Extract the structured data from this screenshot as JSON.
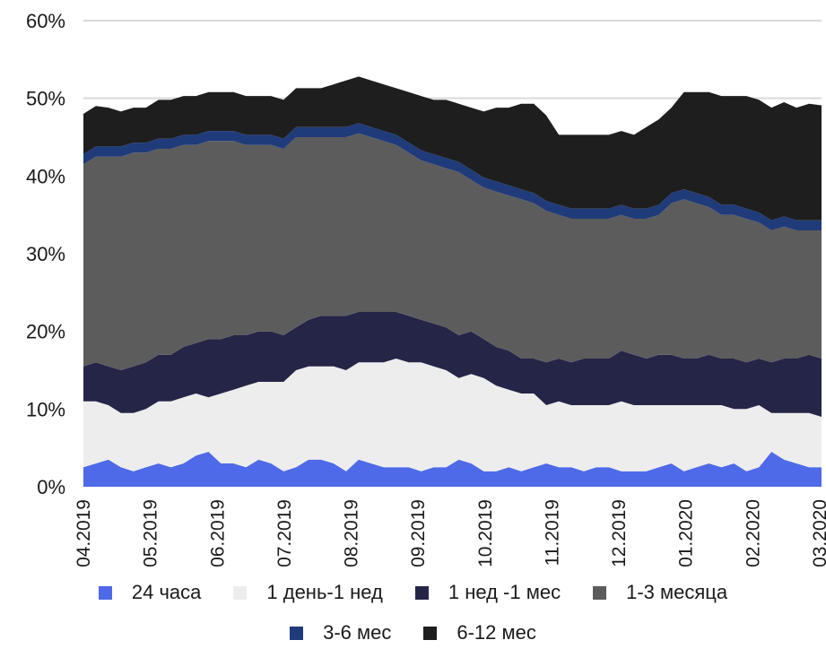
{
  "chart_data": {
    "type": "area",
    "stacked": true,
    "y_ticks": [
      "0%",
      "10%",
      "20%",
      "30%",
      "40%",
      "50%",
      "60%"
    ],
    "ylim": [
      0,
      60
    ],
    "x_ticks": [
      "04.2019",
      "05.2019",
      "06.2019",
      "07.2019",
      "08.2019",
      "09.2019",
      "10.2019",
      "11.2019",
      "12.2019",
      "01.2020",
      "02.2020",
      "03.2020"
    ],
    "grid": "horizontal",
    "legend_position": "bottom",
    "series": [
      {
        "name": "24 часа",
        "color": "#4e6ae8",
        "values": [
          2.5,
          3.0,
          3.5,
          2.5,
          2.0,
          2.5,
          3.0,
          2.5,
          3.0,
          4.0,
          4.5,
          3.0,
          3.0,
          2.5,
          3.5,
          3.0,
          2.0,
          2.5,
          3.5,
          3.5,
          3.0,
          2.0,
          3.5,
          3.0,
          2.5,
          2.5,
          2.5,
          2.0,
          2.5,
          2.5,
          3.5,
          3.0,
          2.0,
          2.0,
          2.5,
          2.0,
          2.5,
          3.0,
          2.5,
          2.5,
          2.0,
          2.5,
          2.5,
          2.0,
          2.0,
          2.0,
          2.5,
          3.0,
          2.0,
          2.5,
          3.0,
          2.5,
          3.0,
          2.0,
          2.5,
          4.5,
          3.5,
          3.0,
          2.5,
          2.5
        ]
      },
      {
        "name": "1 день-1 нед",
        "color": "#ededed",
        "values": [
          8.5,
          8.0,
          7.0,
          7.0,
          7.5,
          7.5,
          8.0,
          8.5,
          8.5,
          8.0,
          7.0,
          9.0,
          9.5,
          10.5,
          10.0,
          10.5,
          11.5,
          12.5,
          12.0,
          12.0,
          12.5,
          13.0,
          12.5,
          13.0,
          13.5,
          14.0,
          13.5,
          14.0,
          13.0,
          12.5,
          10.5,
          11.5,
          12.0,
          11.0,
          10.0,
          10.0,
          9.5,
          7.5,
          8.5,
          8.0,
          8.5,
          8.0,
          8.0,
          9.0,
          8.5,
          8.5,
          8.0,
          7.5,
          8.5,
          8.0,
          7.5,
          8.0,
          7.0,
          8.0,
          8.0,
          5.0,
          6.0,
          6.5,
          7.0,
          6.5
        ]
      },
      {
        "name": "1 нед -1 мес",
        "color": "#252548",
        "values": [
          4.5,
          5.0,
          5.0,
          5.5,
          6.0,
          6.0,
          6.0,
          6.0,
          6.5,
          6.5,
          7.5,
          7.0,
          7.0,
          6.5,
          6.5,
          6.5,
          6.0,
          5.5,
          6.0,
          6.5,
          6.5,
          7.0,
          6.5,
          6.5,
          6.5,
          6.0,
          6.0,
          5.5,
          5.5,
          5.5,
          5.5,
          5.5,
          5.0,
          5.0,
          5.0,
          4.5,
          4.5,
          5.5,
          5.5,
          5.5,
          6.0,
          6.0,
          6.0,
          6.5,
          6.5,
          6.0,
          6.5,
          6.5,
          6.0,
          6.0,
          6.5,
          6.0,
          6.5,
          6.0,
          6.0,
          6.5,
          7.0,
          7.0,
          7.5,
          7.5
        ]
      },
      {
        "name": "1-3 месяца",
        "color": "#5c5c5c",
        "values": [
          26.0,
          26.5,
          27.0,
          27.5,
          27.5,
          27.0,
          26.5,
          26.5,
          26.0,
          25.5,
          25.5,
          25.5,
          25.0,
          24.5,
          24.0,
          24.0,
          24.0,
          24.5,
          23.5,
          23.0,
          23.0,
          23.0,
          23.0,
          22.5,
          22.0,
          21.5,
          21.0,
          20.5,
          20.5,
          20.5,
          21.0,
          19.5,
          19.5,
          20.0,
          20.0,
          20.5,
          20.0,
          19.5,
          18.5,
          18.5,
          18.0,
          18.0,
          18.0,
          17.5,
          17.5,
          18.0,
          18.0,
          19.5,
          20.5,
          20.0,
          19.0,
          18.5,
          18.5,
          18.5,
          17.5,
          17.0,
          17.0,
          16.5,
          16.0,
          16.5
        ]
      },
      {
        "name": "3-6 мес",
        "color": "#1f3b7a",
        "values": [
          1.3,
          1.3,
          1.3,
          1.3,
          1.3,
          1.3,
          1.3,
          1.3,
          1.3,
          1.3,
          1.3,
          1.3,
          1.3,
          1.3,
          1.3,
          1.3,
          1.3,
          1.3,
          1.3,
          1.3,
          1.3,
          1.3,
          1.3,
          1.3,
          1.3,
          1.3,
          1.3,
          1.3,
          1.3,
          1.3,
          1.3,
          1.3,
          1.3,
          1.3,
          1.3,
          1.3,
          1.3,
          1.3,
          1.3,
          1.3,
          1.3,
          1.3,
          1.3,
          1.3,
          1.3,
          1.3,
          1.3,
          1.3,
          1.3,
          1.3,
          1.3,
          1.3,
          1.3,
          1.3,
          1.3,
          1.3,
          1.3,
          1.3,
          1.3,
          1.3
        ]
      },
      {
        "name": "6-12 мес",
        "color": "#1e1e1e",
        "values": [
          5.2,
          5.2,
          5.0,
          4.5,
          4.5,
          4.5,
          5.0,
          5.0,
          5.0,
          5.0,
          5.0,
          5.0,
          5.0,
          5.0,
          5.0,
          5.0,
          5.0,
          5.0,
          5.0,
          5.0,
          5.5,
          6.0,
          6.0,
          6.0,
          6.0,
          6.0,
          6.5,
          7.0,
          7.0,
          7.5,
          7.5,
          8.0,
          8.5,
          9.5,
          10.0,
          11.0,
          11.5,
          11.0,
          9.0,
          9.5,
          9.5,
          9.5,
          9.5,
          9.5,
          9.5,
          10.5,
          11.0,
          11.0,
          12.5,
          13.0,
          13.5,
          14.0,
          14.0,
          14.5,
          14.5,
          14.5,
          14.7,
          14.5,
          15.0,
          14.8
        ]
      }
    ]
  }
}
